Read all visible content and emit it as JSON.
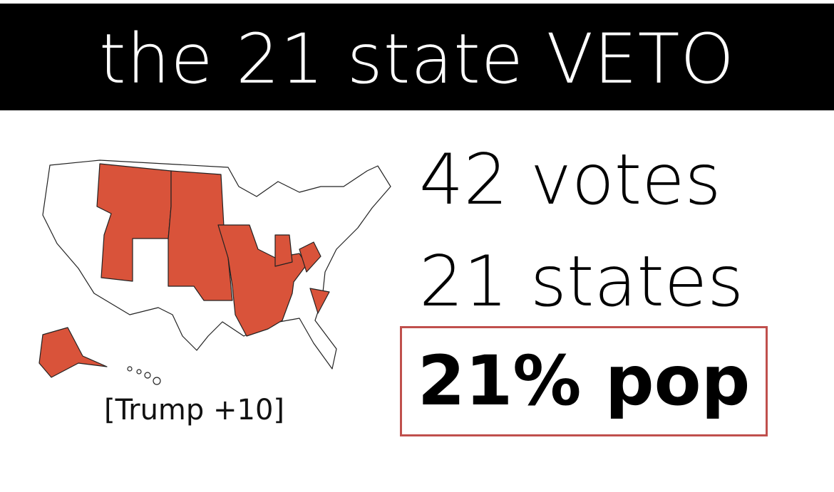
{
  "header": {
    "title": "the 21 state VETO"
  },
  "map": {
    "caption": "[Trump +10]"
  },
  "stats": [
    "42 votes",
    "21 states",
    "21% pop"
  ]
}
